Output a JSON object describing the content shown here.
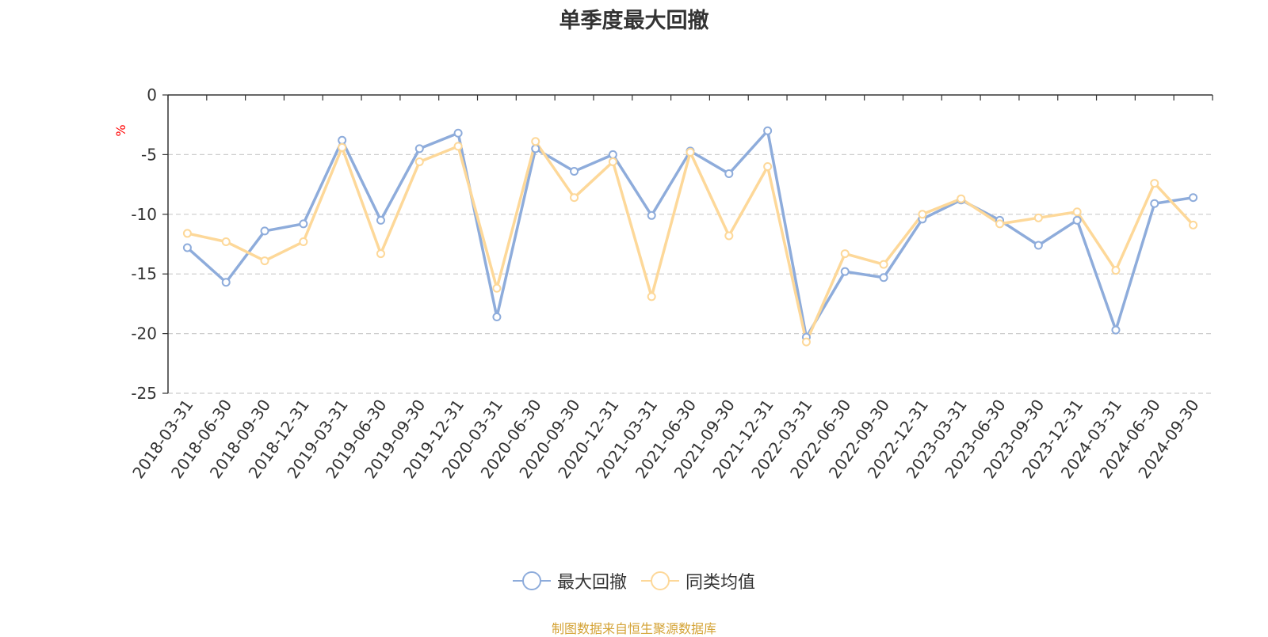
{
  "chart_data": {
    "type": "line",
    "title": "单季度最大回撤",
    "ylabel": "%",
    "ylim": [
      -25,
      0
    ],
    "yticks": [
      "0",
      "-5",
      "-10",
      "-15",
      "-20",
      "-25"
    ],
    "grid": true,
    "legend_position": "bottom",
    "categories": [
      "2018-03-31",
      "2018-06-30",
      "2018-09-30",
      "2018-12-31",
      "2019-03-31",
      "2019-06-30",
      "2019-09-30",
      "2019-12-31",
      "2020-03-31",
      "2020-06-30",
      "2020-09-30",
      "2020-12-31",
      "2021-03-31",
      "2021-06-30",
      "2021-09-30",
      "2021-12-31",
      "2022-03-31",
      "2022-06-30",
      "2022-09-30",
      "2022-12-31",
      "2023-03-31",
      "2023-06-30",
      "2023-09-30",
      "2023-12-31",
      "2024-03-31",
      "2024-06-30",
      "2024-09-30"
    ],
    "series": [
      {
        "name": "最大回撤",
        "color": "#8eacdb",
        "values": [
          -12.8,
          -15.7,
          -11.4,
          -10.8,
          -3.8,
          -10.5,
          -4.5,
          -3.2,
          -18.6,
          -4.5,
          -6.4,
          -5.0,
          -10.1,
          -4.7,
          -6.6,
          -3.0,
          -20.3,
          -14.8,
          -15.3,
          -10.4,
          -8.8,
          -10.5,
          -12.6,
          -10.5,
          -19.7,
          -9.1,
          -8.6
        ]
      },
      {
        "name": "同类均值",
        "color": "#fdd899",
        "values": [
          -11.6,
          -12.3,
          -13.9,
          -12.3,
          -4.4,
          -13.3,
          -5.6,
          -4.3,
          -16.2,
          -3.9,
          -8.6,
          -5.6,
          -16.9,
          -4.8,
          -11.8,
          -6.0,
          -20.7,
          -13.3,
          -14.2,
          -10.0,
          -8.7,
          -10.8,
          -10.3,
          -9.8,
          -14.7,
          -7.4,
          -10.9
        ]
      }
    ]
  },
  "legend": {
    "items": [
      {
        "label": "最大回撤",
        "color": "#8eacdb"
      },
      {
        "label": "同类均值",
        "color": "#fdd899"
      }
    ]
  },
  "source": {
    "text": "制图数据来自恒生聚源数据库",
    "color": "#d4a336"
  },
  "ylabel_color": "#ff0000"
}
